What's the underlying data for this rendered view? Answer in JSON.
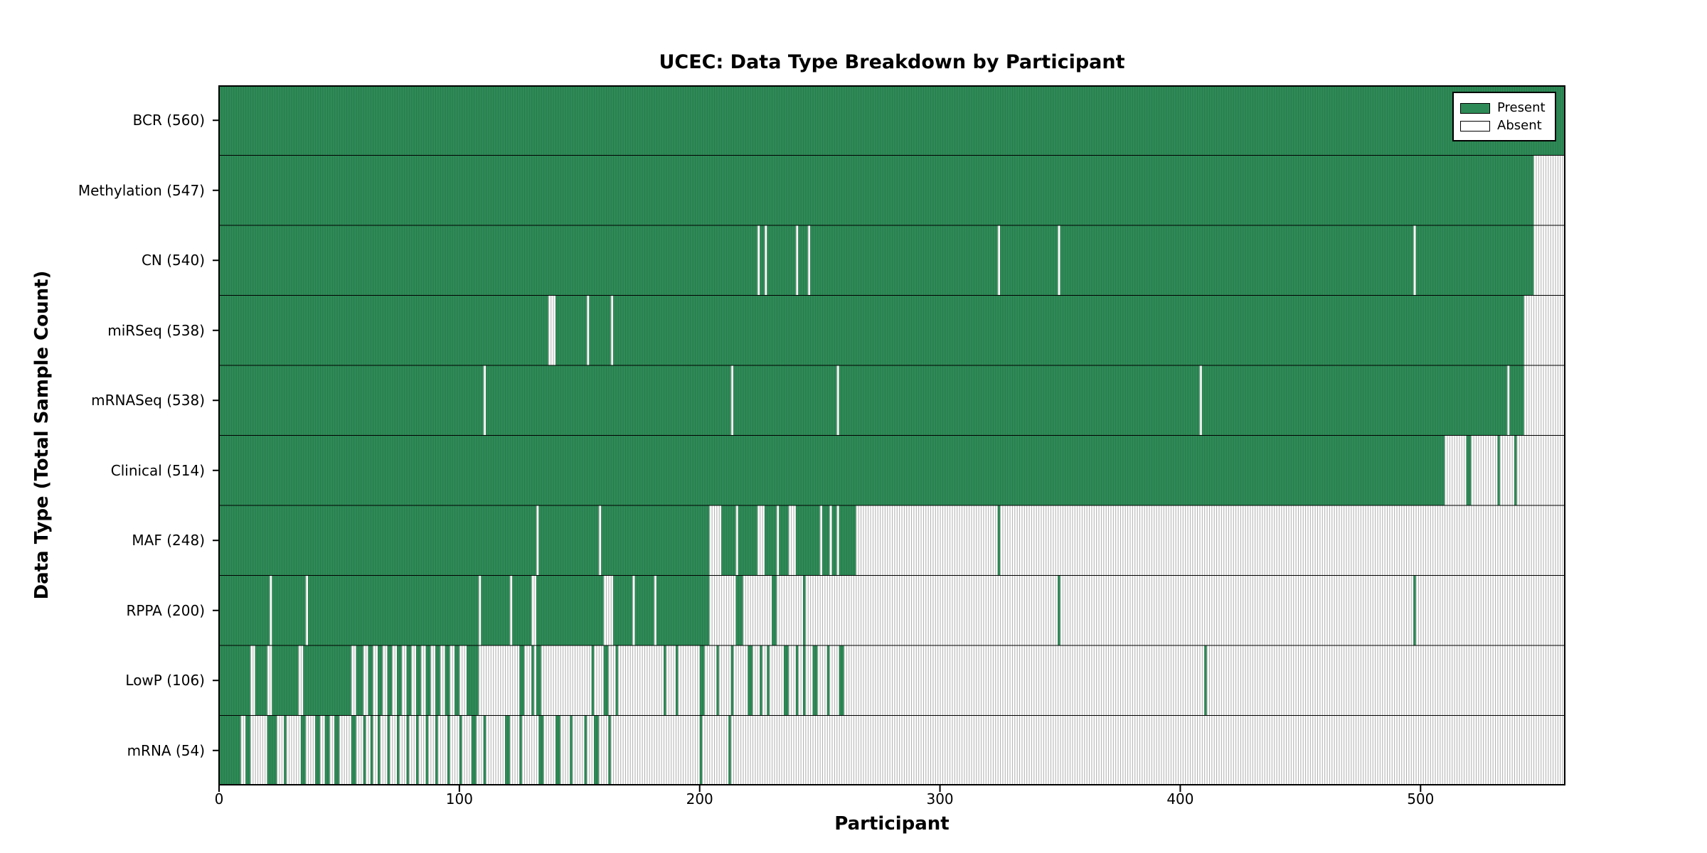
{
  "chart_data": {
    "type": "heatmap",
    "title": "UCEC: Data Type Breakdown by Participant",
    "xlabel": "Participant",
    "ylabel": "Data Type (Total Sample Count)",
    "xlim": [
      0,
      560
    ],
    "x_ticks": [
      0,
      100,
      200,
      300,
      400,
      500
    ],
    "grid": false,
    "legend_position": "upper right",
    "legend": [
      {
        "label": "Present",
        "color": "#2e8b57"
      },
      {
        "label": "Absent",
        "color": "#ffffff"
      }
    ],
    "colors": {
      "present": "#2e8b57",
      "absent": "#ffffff",
      "absent_stripe": "#c9c9c9",
      "border": "#000000"
    },
    "rows": [
      {
        "label": "BCR (560)",
        "count": 560,
        "present_ranges": [
          [
            0,
            560
          ]
        ]
      },
      {
        "label": "Methylation (547)",
        "count": 547,
        "present_ranges": [
          [
            0,
            547
          ]
        ]
      },
      {
        "label": "CN (540)",
        "count": 540,
        "present_ranges": [
          [
            0,
            224
          ],
          [
            225,
            227
          ],
          [
            228,
            240
          ],
          [
            241,
            245
          ],
          [
            246,
            324
          ],
          [
            325,
            349
          ],
          [
            350,
            497
          ],
          [
            498,
            547
          ]
        ]
      },
      {
        "label": "miRSeq (538)",
        "count": 538,
        "present_ranges": [
          [
            0,
            137
          ],
          [
            140,
            153
          ],
          [
            154,
            163
          ],
          [
            164,
            543
          ]
        ]
      },
      {
        "label": "mRNASeq (538)",
        "count": 538,
        "present_ranges": [
          [
            0,
            110
          ],
          [
            111,
            213
          ],
          [
            214,
            257
          ],
          [
            258,
            408
          ],
          [
            409,
            536
          ],
          [
            537,
            543
          ]
        ]
      },
      {
        "label": "Clinical (514)",
        "count": 514,
        "present_ranges": [
          [
            0,
            510
          ],
          [
            519,
            521
          ],
          [
            532,
            533
          ],
          [
            539,
            540
          ]
        ]
      },
      {
        "label": "MAF (248)",
        "count": 248,
        "present_ranges": [
          [
            0,
            132
          ],
          [
            133,
            158
          ],
          [
            159,
            204
          ],
          [
            209,
            215
          ],
          [
            216,
            224
          ],
          [
            227,
            232
          ],
          [
            233,
            237
          ],
          [
            240,
            250
          ],
          [
            251,
            254
          ],
          [
            255,
            257
          ],
          [
            258,
            265
          ],
          [
            324,
            325
          ]
        ]
      },
      {
        "label": "RPPA (200)",
        "count": 200,
        "present_ranges": [
          [
            0,
            21
          ],
          [
            22,
            36
          ],
          [
            37,
            108
          ],
          [
            109,
            121
          ],
          [
            122,
            130
          ],
          [
            132,
            160
          ],
          [
            164,
            172
          ],
          [
            173,
            181
          ],
          [
            182,
            204
          ],
          [
            215,
            218
          ],
          [
            230,
            232
          ],
          [
            243,
            244
          ],
          [
            349,
            350
          ],
          [
            497,
            498
          ]
        ]
      },
      {
        "label": "LowP (106)",
        "count": 106,
        "present_ranges": [
          [
            0,
            13
          ],
          [
            15,
            20
          ],
          [
            22,
            33
          ],
          [
            35,
            55
          ],
          [
            57,
            60
          ],
          [
            62,
            64
          ],
          [
            66,
            68
          ],
          [
            70,
            72
          ],
          [
            74,
            76
          ],
          [
            78,
            80
          ],
          [
            82,
            84
          ],
          [
            86,
            88
          ],
          [
            90,
            92
          ],
          [
            94,
            96
          ],
          [
            98,
            100
          ],
          [
            103,
            108
          ],
          [
            125,
            127
          ],
          [
            130,
            131
          ],
          [
            132,
            134
          ],
          [
            155,
            156
          ],
          [
            160,
            162
          ],
          [
            165,
            166
          ],
          [
            185,
            186
          ],
          [
            190,
            191
          ],
          [
            200,
            202
          ],
          [
            207,
            208
          ],
          [
            213,
            214
          ],
          [
            220,
            222
          ],
          [
            225,
            226
          ],
          [
            228,
            229
          ],
          [
            235,
            237
          ],
          [
            240,
            241
          ],
          [
            243,
            244
          ],
          [
            247,
            249
          ],
          [
            253,
            254
          ],
          [
            258,
            260
          ],
          [
            410,
            411
          ]
        ]
      },
      {
        "label": "mRNA (54)",
        "count": 54,
        "present_ranges": [
          [
            0,
            9
          ],
          [
            11,
            13
          ],
          [
            20,
            24
          ],
          [
            27,
            28
          ],
          [
            34,
            36
          ],
          [
            40,
            42
          ],
          [
            44,
            46
          ],
          [
            48,
            50
          ],
          [
            55,
            57
          ],
          [
            60,
            61
          ],
          [
            63,
            64
          ],
          [
            66,
            67
          ],
          [
            70,
            71
          ],
          [
            74,
            75
          ],
          [
            78,
            79
          ],
          [
            82,
            83
          ],
          [
            86,
            87
          ],
          [
            90,
            91
          ],
          [
            95,
            96
          ],
          [
            100,
            101
          ],
          [
            105,
            107
          ],
          [
            110,
            111
          ],
          [
            119,
            121
          ],
          [
            125,
            126
          ],
          [
            133,
            135
          ],
          [
            140,
            142
          ],
          [
            146,
            147
          ],
          [
            152,
            153
          ],
          [
            156,
            158
          ],
          [
            162,
            163
          ],
          [
            200,
            201
          ],
          [
            212,
            213
          ]
        ]
      }
    ]
  }
}
